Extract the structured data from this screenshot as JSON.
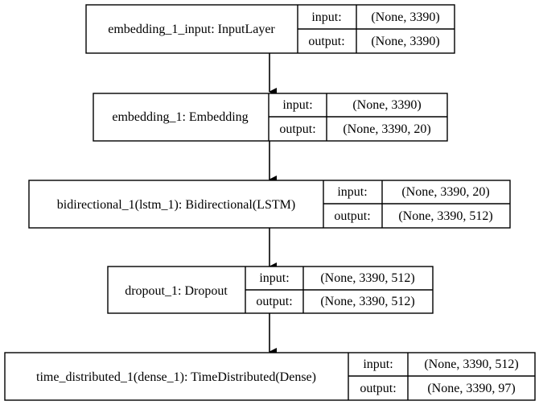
{
  "layers": [
    {
      "name": "embedding_1_input: InputLayer",
      "input_label": "input:",
      "input_value": "(None, 3390)",
      "output_label": "output:",
      "output_value": "(None, 3390)"
    },
    {
      "name": "embedding_1: Embedding",
      "input_label": "input:",
      "input_value": "(None, 3390)",
      "output_label": "output:",
      "output_value": "(None, 3390, 20)"
    },
    {
      "name": "bidirectional_1(lstm_1): Bidirectional(LSTM)",
      "input_label": "input:",
      "input_value": "(None, 3390, 20)",
      "output_label": "output:",
      "output_value": "(None, 3390, 512)"
    },
    {
      "name": "dropout_1: Dropout",
      "input_label": "input:",
      "input_value": "(None, 3390, 512)",
      "output_label": "output:",
      "output_value": "(None, 3390, 512)"
    },
    {
      "name": "time_distributed_1(dense_1): TimeDistributed(Dense)",
      "input_label": "input:",
      "input_value": "(None, 3390, 512)",
      "output_label": "output:",
      "output_value": "(None, 3390, 97)"
    }
  ]
}
